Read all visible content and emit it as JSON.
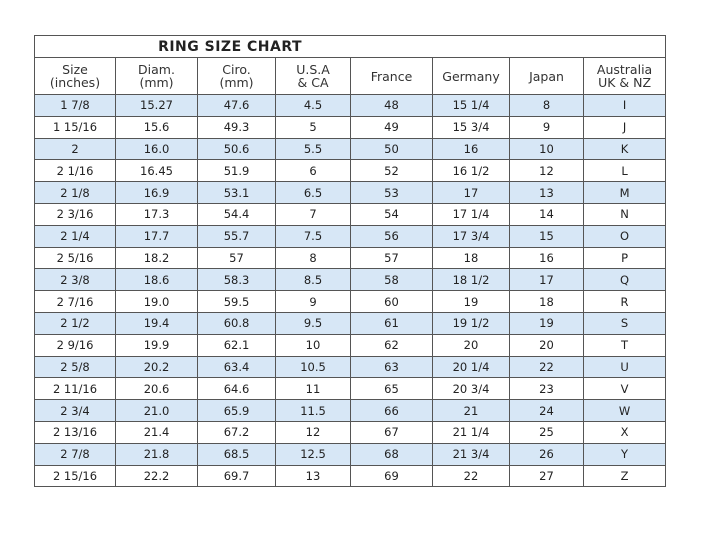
{
  "title": "RING SIZE CHART",
  "headers": [
    [
      "Size",
      "(inches)"
    ],
    [
      "Diam.",
      "(mm)"
    ],
    [
      "Ciro.",
      "(mm)"
    ],
    [
      "U.S.A",
      "& CA"
    ],
    [
      "France",
      ""
    ],
    [
      "Germany",
      ""
    ],
    [
      "Japan",
      ""
    ],
    [
      "Australia",
      "UK & NZ"
    ]
  ],
  "rows": [
    [
      "1 7/8",
      "15.27",
      "47.6",
      "4.5",
      "48",
      "15 1/4",
      "8",
      "I"
    ],
    [
      "1 15/16",
      "15.6",
      "49.3",
      "5",
      "49",
      "15 3/4",
      "9",
      "J"
    ],
    [
      "2",
      "16.0",
      "50.6",
      "5.5",
      "50",
      "16",
      "10",
      "K"
    ],
    [
      "2 1/16",
      "16.45",
      "51.9",
      "6",
      "52",
      "16 1/2",
      "12",
      "L"
    ],
    [
      "2 1/8",
      "16.9",
      "53.1",
      "6.5",
      "53",
      "17",
      "13",
      "M"
    ],
    [
      "2 3/16",
      "17.3",
      "54.4",
      "7",
      "54",
      "17 1/4",
      "14",
      "N"
    ],
    [
      "2 1/4",
      "17.7",
      "55.7",
      "7.5",
      "56",
      "17 3/4",
      "15",
      "O"
    ],
    [
      "2 5/16",
      "18.2",
      "57",
      "8",
      "57",
      "18",
      "16",
      "P"
    ],
    [
      "2 3/8",
      "18.6",
      "58.3",
      "8.5",
      "58",
      "18 1/2",
      "17",
      "Q"
    ],
    [
      "2 7/16",
      "19.0",
      "59.5",
      "9",
      "60",
      "19",
      "18",
      "R"
    ],
    [
      "2 1/2",
      "19.4",
      "60.8",
      "9.5",
      "61",
      "19 1/2",
      "19",
      "S"
    ],
    [
      "2 9/16",
      "19.9",
      "62.1",
      "10",
      "62",
      "20",
      "20",
      "T"
    ],
    [
      "2 5/8",
      "20.2",
      "63.4",
      "10.5",
      "63",
      "20 1/4",
      "22",
      "U"
    ],
    [
      "2 11/16",
      "20.6",
      "64.6",
      "11",
      "65",
      "20 3/4",
      "23",
      "V"
    ],
    [
      "2 3/4",
      "21.0",
      "65.9",
      "11.5",
      "66",
      "21",
      "24",
      "W"
    ],
    [
      "2 13/16",
      "21.4",
      "67.2",
      "12",
      "67",
      "21 1/4",
      "25",
      "X"
    ],
    [
      "2 7/8",
      "21.8",
      "68.5",
      "12.5",
      "68",
      "21 3/4",
      "26",
      "Y"
    ],
    [
      "2 15/16",
      "22.2",
      "69.7",
      "13",
      "69",
      "22",
      "27",
      "Z"
    ]
  ],
  "colors": {
    "stripe": "#d7e7f6",
    "border": "#555555"
  }
}
